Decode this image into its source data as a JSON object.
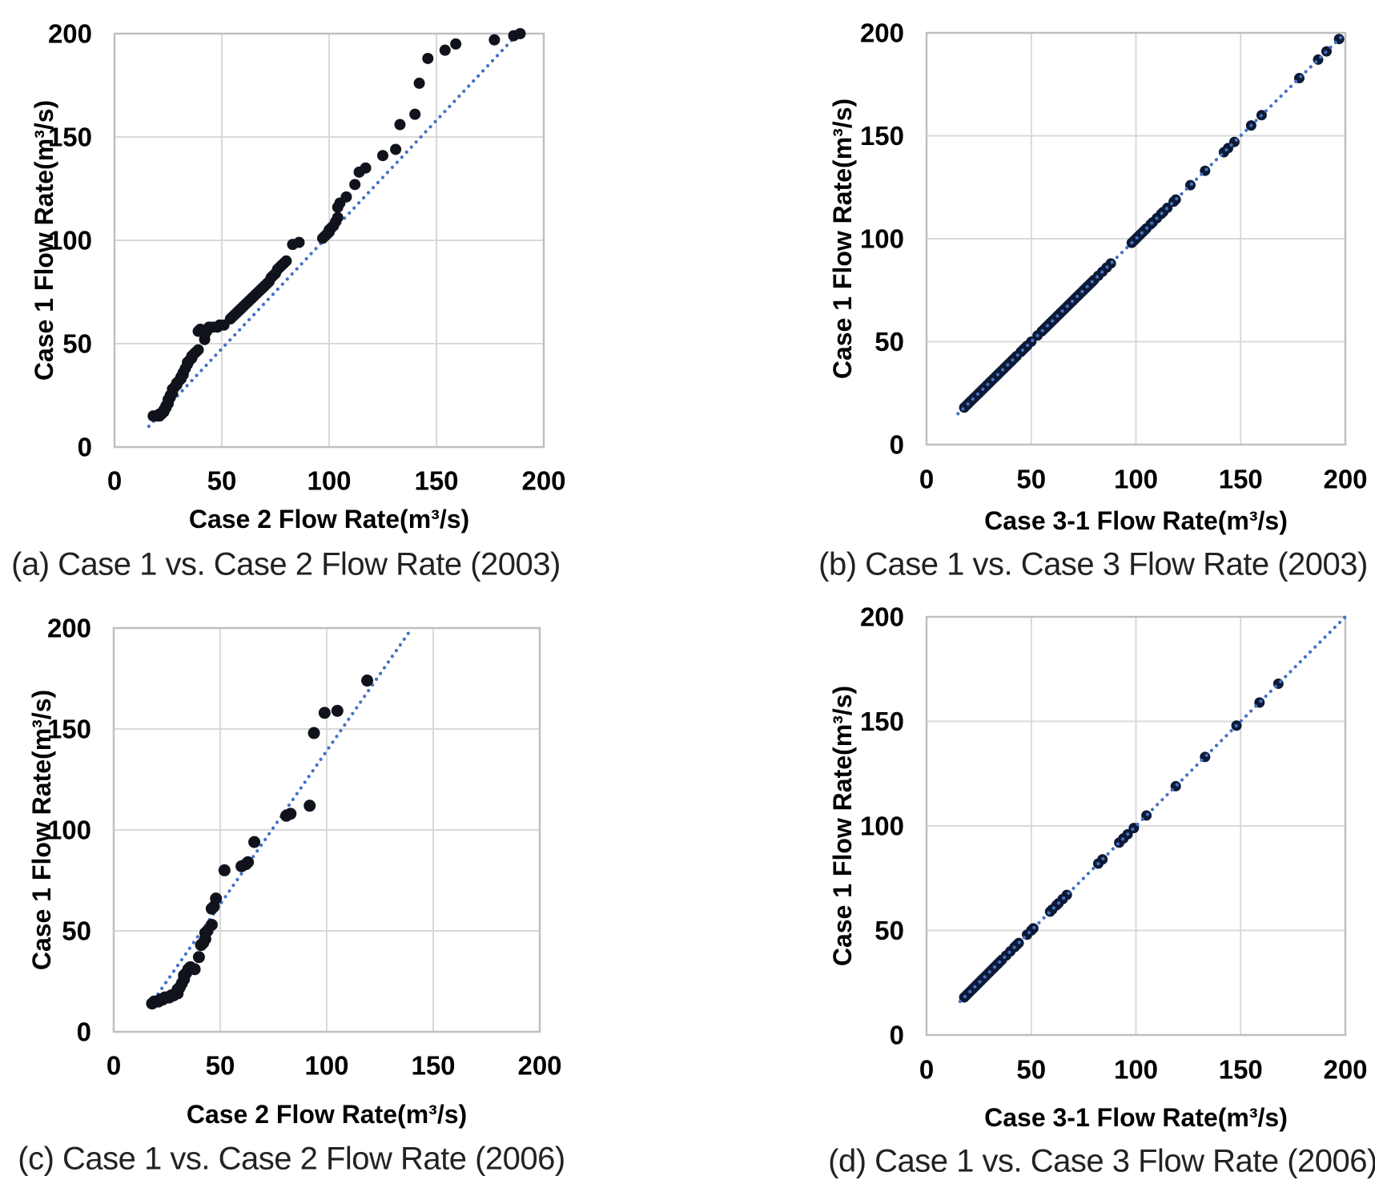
{
  "page": {
    "background": "#ffffff",
    "accent_color": "#4472c4",
    "grid_color": "#d9d9d9",
    "border_color": "#bfbfbf",
    "text_color": "#000000",
    "caption_color": "#222222"
  },
  "chart_data": [
    {
      "id": "a",
      "type": "scatter",
      "caption": "(a) Case 1 vs. Case 2 Flow Rate (2003)",
      "xlabel": "Case 2 Flow Rate(m³/s)",
      "ylabel": "Case 1 Flow Rate(m³/s)",
      "xlim": [
        0,
        200
      ],
      "ylim": [
        0,
        200
      ],
      "xticks": [
        0,
        50,
        100,
        150,
        200
      ],
      "yticks": [
        0,
        50,
        100,
        150,
        200
      ],
      "grid": true,
      "legend": false,
      "marker_color": "#11131c",
      "line_color": "#4472c4",
      "line_over_points": false,
      "trendline": [
        [
          16,
          10
        ],
        [
          188,
          200
        ]
      ],
      "points": [
        [
          18,
          15
        ],
        [
          19,
          15
        ],
        [
          20,
          15
        ],
        [
          21,
          15
        ],
        [
          21,
          16
        ],
        [
          22,
          16
        ],
        [
          23,
          17
        ],
        [
          23,
          18
        ],
        [
          24,
          19
        ],
        [
          24,
          20
        ],
        [
          25,
          21
        ],
        [
          25,
          23
        ],
        [
          26,
          24
        ],
        [
          26,
          25
        ],
        [
          27,
          26
        ],
        [
          27,
          28
        ],
        [
          28,
          29
        ],
        [
          29,
          30
        ],
        [
          29,
          31
        ],
        [
          30,
          32
        ],
        [
          31,
          33
        ],
        [
          31,
          34
        ],
        [
          32,
          35
        ],
        [
          32,
          36
        ],
        [
          33,
          38
        ],
        [
          34,
          40
        ],
        [
          34,
          41
        ],
        [
          35,
          42
        ],
        [
          36,
          43
        ],
        [
          36,
          44
        ],
        [
          37,
          45
        ],
        [
          38,
          46
        ],
        [
          39,
          47
        ],
        [
          39,
          56
        ],
        [
          40,
          57
        ],
        [
          42,
          52
        ],
        [
          42,
          54
        ],
        [
          43,
          56
        ],
        [
          44,
          58
        ],
        [
          46,
          58
        ],
        [
          48,
          58
        ],
        [
          49,
          59
        ],
        [
          51,
          59
        ],
        [
          54,
          62
        ],
        [
          55,
          63
        ],
        [
          56,
          64
        ],
        [
          57,
          65
        ],
        [
          58,
          66
        ],
        [
          59,
          67
        ],
        [
          60,
          68
        ],
        [
          61,
          69
        ],
        [
          62,
          70
        ],
        [
          63,
          71
        ],
        [
          64,
          72
        ],
        [
          65,
          73
        ],
        [
          66,
          74
        ],
        [
          67,
          75
        ],
        [
          68,
          76
        ],
        [
          69,
          77
        ],
        [
          70,
          78
        ],
        [
          71,
          79
        ],
        [
          72,
          80
        ],
        [
          73,
          82
        ],
        [
          74,
          83
        ],
        [
          75,
          84
        ],
        [
          76,
          86
        ],
        [
          77,
          87
        ],
        [
          78,
          88
        ],
        [
          79,
          89
        ],
        [
          80,
          90
        ],
        [
          83,
          98
        ],
        [
          86,
          99
        ],
        [
          97,
          101
        ],
        [
          98,
          102
        ],
        [
          99,
          103
        ],
        [
          100,
          104
        ],
        [
          100,
          105
        ],
        [
          101,
          106
        ],
        [
          102,
          107
        ],
        [
          103,
          109
        ],
        [
          104,
          111
        ],
        [
          104,
          116
        ],
        [
          105,
          118
        ],
        [
          108,
          121
        ],
        [
          112,
          127
        ],
        [
          114,
          133
        ],
        [
          117,
          135
        ],
        [
          125,
          141
        ],
        [
          131,
          144
        ],
        [
          133,
          156
        ],
        [
          140,
          161
        ],
        [
          142,
          176
        ],
        [
          146,
          188
        ],
        [
          154,
          192
        ],
        [
          159,
          195
        ],
        [
          177,
          197
        ],
        [
          186,
          199
        ],
        [
          189,
          200
        ]
      ]
    },
    {
      "id": "b",
      "type": "scatter",
      "caption": "(b) Case 1 vs. Case 3 Flow Rate (2003)",
      "xlabel": "Case 3-1 Flow Rate(m³/s)",
      "ylabel": "Case 1 Flow Rate(m³/s)",
      "xlim": [
        0,
        200
      ],
      "ylim": [
        0,
        200
      ],
      "xticks": [
        0,
        50,
        100,
        150,
        200
      ],
      "yticks": [
        0,
        50,
        100,
        150,
        200
      ],
      "grid": true,
      "legend": false,
      "marker_color": "#0c1a36",
      "line_color": "#4472c4",
      "line_over_points": true,
      "trendline": [
        [
          15,
          15
        ],
        [
          200,
          200
        ]
      ],
      "points": [
        [
          18,
          18
        ],
        [
          19,
          19
        ],
        [
          20,
          20
        ],
        [
          21,
          21
        ],
        [
          22,
          22
        ],
        [
          23,
          23
        ],
        [
          24,
          24
        ],
        [
          25,
          25
        ],
        [
          26,
          26
        ],
        [
          27,
          27
        ],
        [
          28,
          28
        ],
        [
          29,
          29
        ],
        [
          30,
          30
        ],
        [
          31,
          31
        ],
        [
          32,
          32
        ],
        [
          33,
          33
        ],
        [
          34,
          34
        ],
        [
          35,
          35
        ],
        [
          36,
          36
        ],
        [
          37,
          37
        ],
        [
          38,
          38
        ],
        [
          39,
          39
        ],
        [
          40,
          40
        ],
        [
          41,
          41
        ],
        [
          42,
          42
        ],
        [
          43,
          43
        ],
        [
          45,
          45
        ],
        [
          46,
          46
        ],
        [
          47,
          47
        ],
        [
          48,
          48
        ],
        [
          50,
          50
        ],
        [
          53,
          53
        ],
        [
          55,
          55
        ],
        [
          56,
          56
        ],
        [
          57,
          57
        ],
        [
          58,
          58
        ],
        [
          59,
          59
        ],
        [
          60,
          60
        ],
        [
          61,
          61
        ],
        [
          62,
          62
        ],
        [
          63,
          63
        ],
        [
          64,
          64
        ],
        [
          65,
          65
        ],
        [
          66,
          66
        ],
        [
          67,
          67
        ],
        [
          68,
          68
        ],
        [
          69,
          69
        ],
        [
          70,
          70
        ],
        [
          71,
          71
        ],
        [
          72,
          72
        ],
        [
          73,
          73
        ],
        [
          74,
          74
        ],
        [
          75,
          75
        ],
        [
          76,
          76
        ],
        [
          77,
          77
        ],
        [
          78,
          78
        ],
        [
          79,
          79
        ],
        [
          80,
          80
        ],
        [
          82,
          82
        ],
        [
          84,
          84
        ],
        [
          86,
          86
        ],
        [
          88,
          88
        ],
        [
          98,
          98
        ],
        [
          99,
          99
        ],
        [
          100,
          100
        ],
        [
          101,
          101
        ],
        [
          102,
          102
        ],
        [
          103,
          103
        ],
        [
          104,
          104
        ],
        [
          105,
          105
        ],
        [
          107,
          107
        ],
        [
          108,
          108
        ],
        [
          110,
          110
        ],
        [
          112,
          112
        ],
        [
          113,
          113
        ],
        [
          115,
          115
        ],
        [
          118,
          118
        ],
        [
          119,
          119
        ],
        [
          126,
          126
        ],
        [
          133,
          133
        ],
        [
          142,
          142
        ],
        [
          144,
          144
        ],
        [
          147,
          147
        ],
        [
          155,
          155
        ],
        [
          160,
          160
        ],
        [
          178,
          178
        ],
        [
          187,
          187
        ],
        [
          191,
          191
        ],
        [
          197,
          197
        ]
      ]
    },
    {
      "id": "c",
      "type": "scatter",
      "caption": "(c) Case 1 vs. Case 2 Flow Rate (2006)",
      "xlabel": "Case 2 Flow Rate(m³/s)",
      "ylabel": "Case 1 Flow Rate(m³/s)",
      "xlim": [
        0,
        200
      ],
      "ylim": [
        0,
        200
      ],
      "xticks": [
        0,
        50,
        100,
        150,
        200
      ],
      "yticks": [
        0,
        50,
        100,
        150,
        200
      ],
      "grid": true,
      "legend": false,
      "marker_color": "#11131c",
      "line_color": "#4472c4",
      "line_over_points": false,
      "trendline": [
        [
          17,
          13
        ],
        [
          140,
          200
        ]
      ],
      "points": [
        [
          18,
          14
        ],
        [
          19,
          15
        ],
        [
          20,
          15
        ],
        [
          21,
          15
        ],
        [
          22,
          16
        ],
        [
          23,
          16
        ],
        [
          24,
          17
        ],
        [
          25,
          17
        ],
        [
          26,
          17
        ],
        [
          27,
          18
        ],
        [
          28,
          18
        ],
        [
          29,
          19
        ],
        [
          30,
          19
        ],
        [
          30,
          21
        ],
        [
          31,
          22
        ],
        [
          32,
          24
        ],
        [
          33,
          26
        ],
        [
          33,
          28
        ],
        [
          34,
          29
        ],
        [
          35,
          31
        ],
        [
          36,
          32
        ],
        [
          38,
          31
        ],
        [
          40,
          37
        ],
        [
          41,
          43
        ],
        [
          42,
          44
        ],
        [
          43,
          46
        ],
        [
          43,
          49
        ],
        [
          44,
          50
        ],
        [
          46,
          53
        ],
        [
          46,
          61
        ],
        [
          47,
          62
        ],
        [
          48,
          66
        ],
        [
          52,
          80
        ],
        [
          60,
          82
        ],
        [
          62,
          83
        ],
        [
          63,
          84
        ],
        [
          66,
          94
        ],
        [
          81,
          107
        ],
        [
          83,
          108
        ],
        [
          92,
          112
        ],
        [
          94,
          148
        ],
        [
          99,
          158
        ],
        [
          105,
          159
        ],
        [
          119,
          174
        ]
      ]
    },
    {
      "id": "d",
      "type": "scatter",
      "caption": "(d) Case 1 vs. Case 3 Flow Rate (2006)",
      "xlabel": "Case 3-1 Flow Rate(m³/s)",
      "ylabel": "Case 1 Flow Rate(m³/s)",
      "xlim": [
        0,
        200
      ],
      "ylim": [
        0,
        200
      ],
      "xticks": [
        0,
        50,
        100,
        150,
        200
      ],
      "yticks": [
        0,
        50,
        100,
        150,
        200
      ],
      "grid": true,
      "legend": false,
      "marker_color": "#0c1a36",
      "line_color": "#4472c4",
      "line_over_points": true,
      "trendline": [
        [
          16,
          16
        ],
        [
          200,
          200
        ]
      ],
      "points": [
        [
          18,
          18
        ],
        [
          19,
          19
        ],
        [
          20,
          20
        ],
        [
          21,
          21
        ],
        [
          22,
          22
        ],
        [
          23,
          23
        ],
        [
          24,
          24
        ],
        [
          25,
          25
        ],
        [
          26,
          26
        ],
        [
          27,
          27
        ],
        [
          28,
          28
        ],
        [
          29,
          29
        ],
        [
          30,
          30
        ],
        [
          31,
          31
        ],
        [
          32,
          32
        ],
        [
          33,
          33
        ],
        [
          34,
          34
        ],
        [
          35,
          35
        ],
        [
          36,
          36
        ],
        [
          38,
          38
        ],
        [
          40,
          40
        ],
        [
          42,
          42
        ],
        [
          43,
          43
        ],
        [
          44,
          44
        ],
        [
          48,
          48
        ],
        [
          50,
          50
        ],
        [
          51,
          51
        ],
        [
          59,
          59
        ],
        [
          60,
          60
        ],
        [
          62,
          62
        ],
        [
          63,
          63
        ],
        [
          65,
          65
        ],
        [
          67,
          67
        ],
        [
          82,
          82
        ],
        [
          84,
          84
        ],
        [
          92,
          92
        ],
        [
          94,
          94
        ],
        [
          96,
          96
        ],
        [
          99,
          99
        ],
        [
          105,
          105
        ],
        [
          119,
          119
        ],
        [
          133,
          133
        ],
        [
          148,
          148
        ],
        [
          159,
          159
        ],
        [
          168,
          168
        ]
      ]
    }
  ]
}
